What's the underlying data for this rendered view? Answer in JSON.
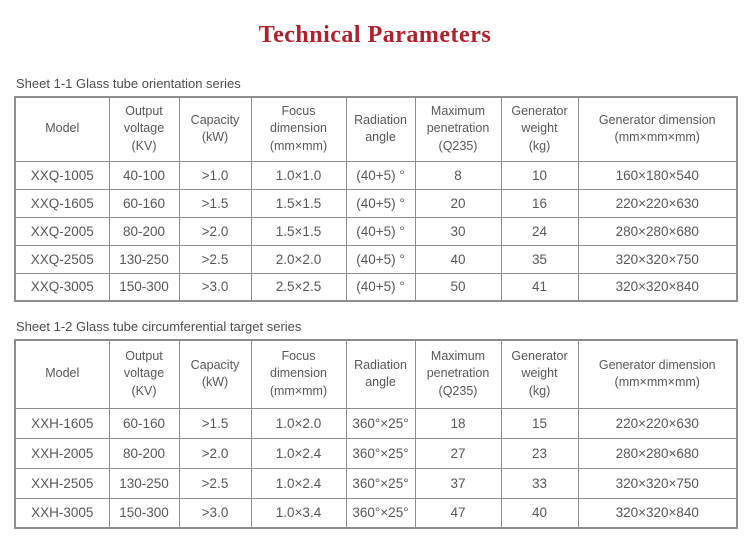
{
  "page": {
    "title": "Technical Parameters"
  },
  "colors": {
    "title_red": "#b3202c",
    "table_border": "#8d8e90",
    "table_text": "#58595b"
  },
  "table1": {
    "caption": "Sheet 1-1 Glass tube orientation series",
    "headers": [
      "Model",
      "Output\nvoltage\n(KV)",
      "Capacity\n(kW)",
      "Focus\ndimension\n(mm×mm)",
      "Radiation\nangle",
      "Maximum\npenetration\n(Q235)",
      "Generator\nweight\n(kg)",
      "Generator dimension\n(mm×mm×mm)"
    ],
    "rows": [
      [
        "XXQ-1005",
        "40-100",
        ">1.0",
        "1.0×1.0",
        "(40+5) °",
        "8",
        "10",
        "160×180×540"
      ],
      [
        "XXQ-1605",
        "60-160",
        ">1.5",
        "1.5×1.5",
        "(40+5) °",
        "20",
        "16",
        "220×220×630"
      ],
      [
        "XXQ-2005",
        "80-200",
        ">2.0",
        "1.5×1.5",
        "(40+5) °",
        "30",
        "24",
        "280×280×680"
      ],
      [
        "XXQ-2505",
        "130-250",
        ">2.5",
        "2.0×2.0",
        "(40+5) °",
        "40",
        "35",
        "320×320×750"
      ],
      [
        "XXQ-3005",
        "150-300",
        ">3.0",
        "2.5×2.5",
        "(40+5) °",
        "50",
        "41",
        "320×320×840"
      ]
    ]
  },
  "table2": {
    "caption": "Sheet 1-2 Glass tube circumferential target series",
    "headers": [
      "Model",
      "Output\nvoltage\n(KV)",
      "Capacity\n(kW)",
      "Focus\ndimension\n(mm×mm)",
      "Radiation\nangle",
      "Maximum\npenetration\n(Q235)",
      "Generator\nweight\n(kg)",
      "Generator dimension\n(mm×mm×mm)"
    ],
    "rows": [
      [
        "XXH-1605",
        "60-160",
        ">1.5",
        "1.0×2.0",
        "360°×25°",
        "18",
        "15",
        "220×220×630"
      ],
      [
        "XXH-2005",
        "80-200",
        ">2.0",
        "1.0×2.4",
        "360°×25°",
        "27",
        "23",
        "280×280×680"
      ],
      [
        "XXH-2505",
        "130-250",
        ">2.5",
        "1.0×2.4",
        "360°×25°",
        "37",
        "33",
        "320×320×750"
      ],
      [
        "XXH-3005",
        "150-300",
        ">3.0",
        "1.0×3.4",
        "360°×25°",
        "47",
        "40",
        "320×320×840"
      ]
    ]
  }
}
